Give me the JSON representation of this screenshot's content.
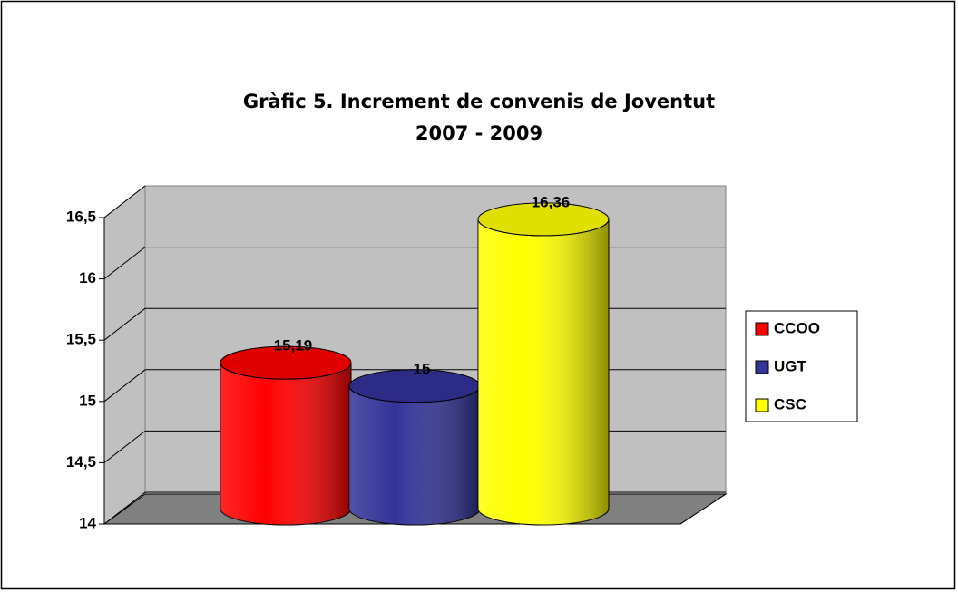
{
  "chart_data": {
    "type": "cylinder",
    "title": "Gràfic 5. Increment de convenis de Joventut",
    "subtitle": "2007 - 2009",
    "categories": [
      null
    ],
    "series": [
      {
        "name": "CCOO",
        "color": "#ff0000",
        "values": [
          15.19
        ],
        "value_labels": [
          "15,19"
        ]
      },
      {
        "name": "UGT",
        "color": "#333399",
        "values": [
          15
        ],
        "value_labels": [
          "15"
        ]
      },
      {
        "name": "CSC",
        "color": "#ffff00",
        "values": [
          16.36
        ],
        "value_labels": [
          "16,36"
        ]
      }
    ],
    "ylim": [
      14,
      16.5
    ],
    "yticks": [
      14,
      {
        "value": 14.5,
        "label": "14,5"
      },
      15,
      {
        "value": 15.5,
        "label": "15,5"
      },
      16,
      {
        "value": 16.5,
        "label": "16,5"
      }
    ],
    "grid": true,
    "legend": "right"
  }
}
